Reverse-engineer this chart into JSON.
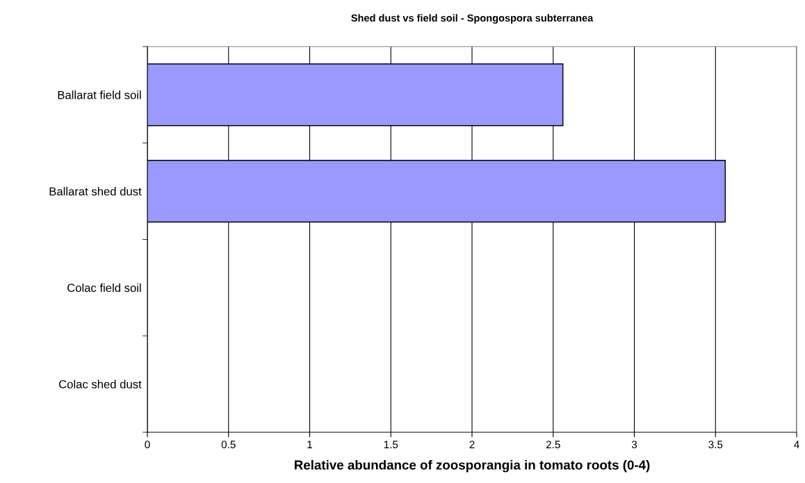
{
  "chart_data": {
    "type": "bar",
    "orientation": "horizontal",
    "title": "Shed dust vs field soil - Spongospora subterranea",
    "xlabel": "Relative abundance of zoosporangia in tomato roots (0-4)",
    "categories": [
      "Ballarat field soil",
      "Ballarat shed dust",
      "Colac field soil",
      "Colac shed dust"
    ],
    "values": [
      2.56,
      3.56,
      null,
      null
    ],
    "color": "#9999ff",
    "xlim": [
      0,
      4
    ],
    "xticks": [
      0,
      0.5,
      1,
      1.5,
      2,
      2.5,
      3,
      3.5,
      4
    ],
    "grid": "x"
  }
}
